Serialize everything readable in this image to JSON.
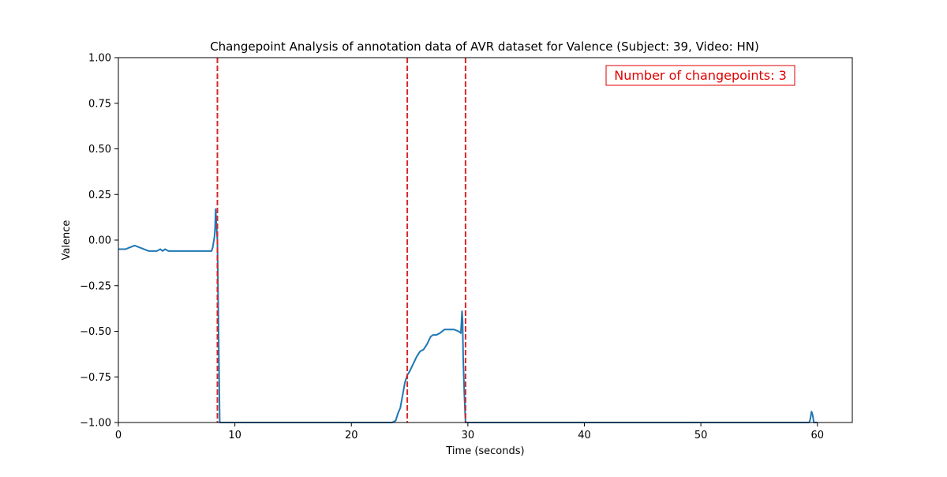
{
  "chart_data": {
    "type": "line",
    "title": "Changepoint Analysis of annotation data of AVR dataset for Valence (Subject: 39, Video: HN)",
    "xlabel": "Time (seconds)",
    "ylabel": "Valence",
    "xlim": [
      0,
      63
    ],
    "ylim": [
      -1.0,
      1.0
    ],
    "x_ticks": [
      0,
      10,
      20,
      30,
      40,
      50,
      60
    ],
    "x_tick_labels": [
      "0",
      "10",
      "20",
      "30",
      "40",
      "50",
      "60"
    ],
    "y_ticks": [
      -1.0,
      -0.75,
      -0.5,
      -0.25,
      0.0,
      0.25,
      0.5,
      0.75,
      1.0
    ],
    "y_tick_labels": [
      "−1.00",
      "−0.75",
      "−0.50",
      "−0.25",
      "0.00",
      "0.25",
      "0.50",
      "0.75",
      "1.00"
    ],
    "grid": false,
    "line_color": "#1f77b4",
    "changepoint_color": "#d62728",
    "series": [
      {
        "x": [
          0,
          0.3,
          0.6,
          1.0,
          1.4,
          1.8,
          2.2,
          2.6,
          3.0,
          3.3,
          3.6,
          3.8,
          4.0,
          4.3,
          4.6,
          5.0,
          5.4,
          5.8,
          6.2,
          6.6,
          7.0,
          7.4,
          7.8,
          8.0,
          8.1,
          8.25,
          8.3,
          8.35,
          8.4,
          8.5,
          8.6,
          8.7,
          8.8,
          9.0,
          10,
          12,
          14,
          16,
          18,
          20,
          22,
          23.5,
          23.8,
          24.0,
          24.2,
          24.4,
          24.6,
          24.8,
          25.0,
          25.3,
          25.6,
          25.9,
          26.2,
          26.5,
          26.8,
          27.0,
          27.3,
          27.6,
          28.0,
          28.4,
          28.8,
          29.2,
          29.4,
          29.5,
          29.55,
          29.6,
          29.7,
          29.8,
          29.9,
          30.0,
          30.2,
          32,
          35,
          40,
          45,
          50,
          55,
          59.0,
          59.3,
          59.4,
          59.5,
          59.6,
          59.7,
          59.9,
          60.0
        ],
        "y": [
          -0.05,
          -0.05,
          -0.05,
          -0.04,
          -0.03,
          -0.04,
          -0.05,
          -0.06,
          -0.06,
          -0.06,
          -0.05,
          -0.06,
          -0.05,
          -0.06,
          -0.06,
          -0.06,
          -0.06,
          -0.06,
          -0.06,
          -0.06,
          -0.06,
          -0.06,
          -0.06,
          -0.06,
          -0.04,
          0.02,
          0.06,
          0.17,
          0.1,
          0.0,
          -0.5,
          -1.0,
          -1.0,
          -1.0,
          -1.0,
          -1.0,
          -1.0,
          -1.0,
          -1.0,
          -1.0,
          -1.0,
          -1.0,
          -0.99,
          -0.95,
          -0.92,
          -0.85,
          -0.78,
          -0.74,
          -0.72,
          -0.68,
          -0.64,
          -0.61,
          -0.6,
          -0.57,
          -0.53,
          -0.52,
          -0.52,
          -0.51,
          -0.49,
          -0.49,
          -0.49,
          -0.5,
          -0.51,
          -0.39,
          -0.45,
          -0.65,
          -0.85,
          -1.0,
          -1.0,
          -1.0,
          -1.0,
          -1.0,
          -1.0,
          -1.0,
          -1.0,
          -1.0,
          -1.0,
          -1.0,
          -1.0,
          -0.98,
          -0.94,
          -0.96,
          -1.0,
          -1.0,
          -1.0
        ]
      }
    ],
    "changepoints": [
      8.5,
      24.8,
      29.8
    ],
    "annotation": {
      "text": "Number of changepoints: 3",
      "placement": "top-right",
      "color": "#e00000"
    }
  }
}
